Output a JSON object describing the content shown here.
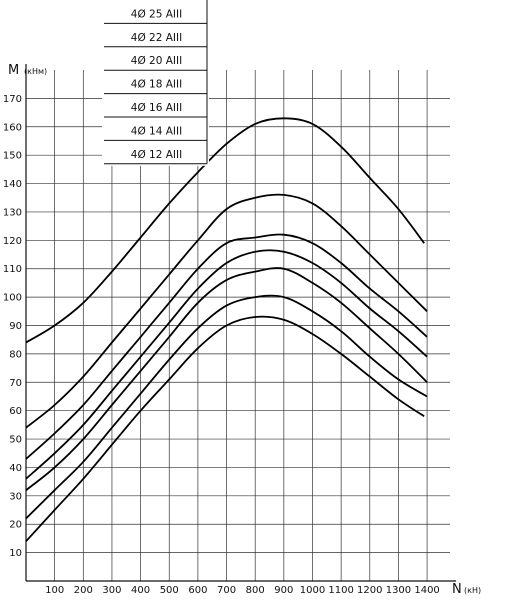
{
  "chart_data": {
    "type": "line",
    "y_axis": {
      "symbol": "M",
      "unit": "(кНм)",
      "ylim": [
        0,
        180
      ],
      "ticks": [
        10,
        20,
        30,
        40,
        50,
        60,
        70,
        80,
        90,
        100,
        110,
        120,
        130,
        140,
        150,
        160,
        170
      ]
    },
    "x_axis": {
      "symbol": "N",
      "unit": "(кН)",
      "xlim": [
        0,
        1480
      ],
      "ticks": [
        100,
        200,
        300,
        400,
        500,
        600,
        700,
        800,
        900,
        1000,
        1100,
        1200,
        1300,
        1400
      ]
    },
    "grid": true,
    "legend_position": "top-left",
    "series": [
      {
        "name": "4Ø 25 AIII",
        "x": [
          0,
          100,
          200,
          300,
          400,
          500,
          600,
          700,
          800,
          900,
          1000,
          1100,
          1200,
          1300,
          1390
        ],
        "y": [
          84,
          90,
          98,
          109,
          121,
          133,
          144,
          154,
          161,
          163,
          161,
          153,
          142,
          131,
          119
        ]
      },
      {
        "name": "4Ø 22 AIII",
        "x": [
          0,
          100,
          200,
          300,
          400,
          500,
          600,
          700,
          800,
          900,
          1000,
          1100,
          1200,
          1300,
          1400
        ],
        "y": [
          54,
          62,
          72,
          84,
          96,
          108,
          120,
          131,
          135,
          136,
          133,
          125,
          115,
          105,
          95
        ]
      },
      {
        "name": "4Ø 20 AIII",
        "x": [
          0,
          100,
          200,
          300,
          400,
          500,
          600,
          700,
          800,
          900,
          1000,
          1100,
          1200,
          1300,
          1400
        ],
        "y": [
          43,
          52,
          62,
          74,
          86,
          98,
          110,
          119,
          121,
          122,
          119,
          112,
          103,
          95,
          86
        ]
      },
      {
        "name": "4Ø 18 AIII",
        "x": [
          0,
          100,
          200,
          300,
          400,
          500,
          600,
          700,
          800,
          900,
          1000,
          1100,
          1200,
          1300,
          1400
        ],
        "y": [
          36,
          45,
          55,
          67,
          79,
          91,
          103,
          112,
          116,
          116,
          112,
          105,
          96,
          88,
          79
        ]
      },
      {
        "name": "4Ø 16 AIII",
        "x": [
          0,
          100,
          200,
          300,
          400,
          500,
          600,
          700,
          800,
          900,
          1000,
          1100,
          1200,
          1300,
          1400
        ],
        "y": [
          32,
          40,
          50,
          62,
          74,
          86,
          98,
          106,
          109,
          110,
          105,
          98,
          89,
          80,
          70
        ]
      },
      {
        "name": "4Ø 14 AIII",
        "x": [
          0,
          100,
          200,
          300,
          400,
          500,
          600,
          700,
          800,
          900,
          1000,
          1100,
          1200,
          1300,
          1400
        ],
        "y": [
          22,
          32,
          42,
          54,
          66,
          78,
          89,
          97,
          100,
          100,
          95,
          88,
          79,
          71,
          65
        ]
      },
      {
        "name": "4Ø 12 AIII",
        "x": [
          0,
          100,
          200,
          300,
          400,
          500,
          600,
          700,
          800,
          900,
          1000,
          1100,
          1200,
          1300,
          1390
        ],
        "y": [
          14,
          25,
          36,
          48,
          60,
          71,
          82,
          90,
          93,
          92,
          87,
          80,
          72,
          64,
          58
        ]
      }
    ]
  }
}
